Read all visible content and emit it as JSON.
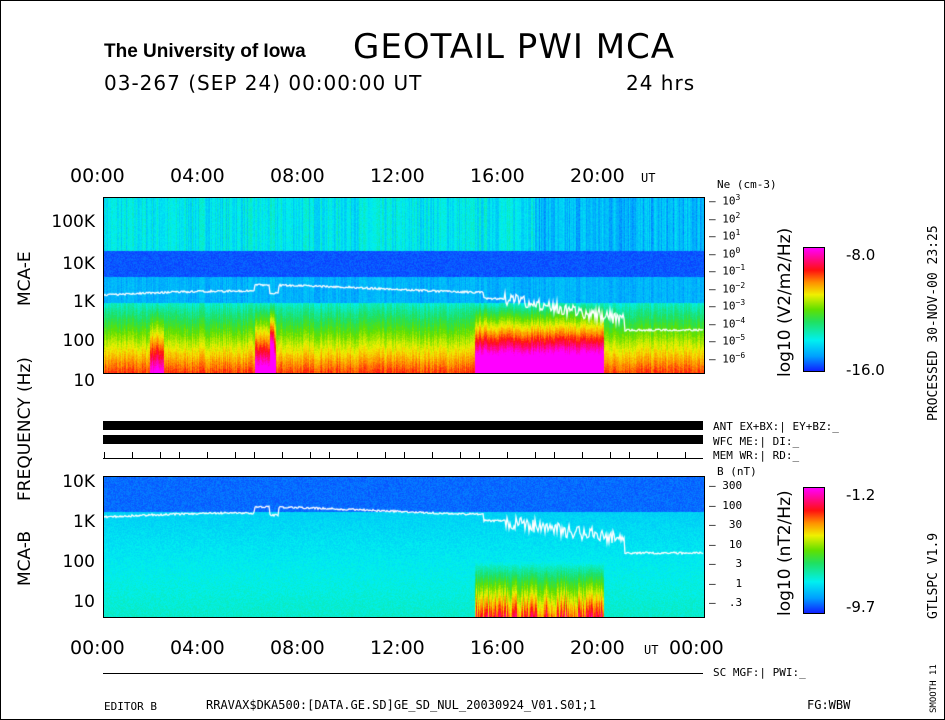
{
  "header": {
    "institution": "The University of Iowa",
    "title": "GEOTAIL  PWI  MCA",
    "date_line": "03-267 (SEP 24) 00:00:00 UT",
    "duration": "24 hrs"
  },
  "side_labels": {
    "processed": "PROCESSED 30-NOV-00  23:25",
    "version": "GTLSPC   V1.9",
    "smooth": "SMOOTH 11"
  },
  "time_axis": {
    "ticks": [
      "00:00",
      "04:00",
      "08:00",
      "12:00",
      "16:00",
      "20:00"
    ],
    "end_tick": "00:00",
    "unit": "UT"
  },
  "status": {
    "ant": "ANT EX+BX:| EY+BZ:_",
    "wfc": "WFC ME:|    DI:_",
    "mem": "MEM WR:|    RD:_",
    "sc": "SC MGF:|    PWI:_"
  },
  "footer": {
    "editor": "EDITOR B",
    "file": "RRAVAX$DKA500:[DATA.GE.SD]GE_SD_NUL_20030924_V01.S01;1",
    "fg": "FG:WBW"
  },
  "frequency_label": "FREQUENCY (Hz)",
  "chart_data": [
    {
      "type": "heatmap",
      "panel": "MCA-E",
      "ylabel": "MCA-E",
      "yticks": [
        "100K",
        "10K",
        "1K",
        "100",
        "10"
      ],
      "yscale": "log",
      "right_axis": {
        "label": "Ne (cm-3)",
        "ticks": [
          "10^3",
          "10^2",
          "10^1",
          "10^0",
          "10^-1",
          "10^-2",
          "10^-3",
          "10^-4",
          "10^-5",
          "10^-6"
        ]
      },
      "colorbar": {
        "label": "log10 (V2/m2/Hz)",
        "max": "-8.0",
        "min": "-16.0"
      },
      "xrange_hours": [
        0,
        24
      ]
    },
    {
      "type": "heatmap",
      "panel": "MCA-B",
      "ylabel": "MCA-B",
      "yticks": [
        "10K",
        "1K",
        "100",
        "10"
      ],
      "yscale": "log",
      "right_axis": {
        "label": "B (nT)",
        "ticks": [
          "300",
          "100",
          "30",
          "10",
          "3",
          "1",
          ".3"
        ]
      },
      "colorbar": {
        "label": "log10 (nT2/Hz)",
        "max": "-1.2",
        "min": "-9.7"
      },
      "xrange_hours": [
        0,
        24
      ]
    }
  ]
}
